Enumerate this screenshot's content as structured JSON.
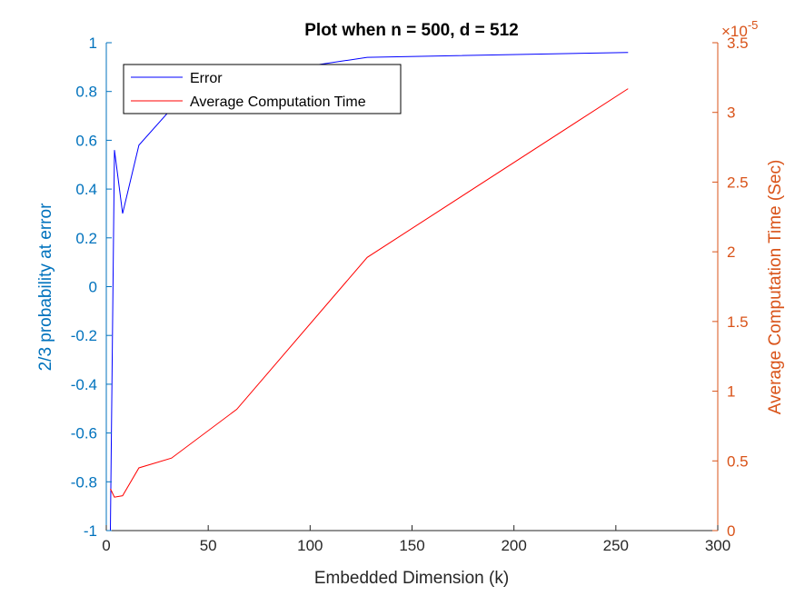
{
  "chart_data": {
    "type": "line",
    "title": "Plot when n = 500, d = 512",
    "xlabel": "Embedded Dimension (k)",
    "ylabel_left": "2/3 probability at error",
    "ylabel_right": "Average Computation Time (Sec)",
    "right_exponent_base": "×10",
    "right_exponent_power": "-5",
    "xlim": [
      0,
      300
    ],
    "ylim_left": [
      -1,
      1
    ],
    "ylim_right": [
      0,
      3.5
    ],
    "x_ticks": [
      "0",
      "50",
      "100",
      "150",
      "200",
      "250",
      "300"
    ],
    "y_left_ticks": [
      "-1",
      "-0.8",
      "-0.6",
      "-0.4",
      "-0.2",
      "0",
      "0.2",
      "0.4",
      "0.6",
      "0.8",
      "1"
    ],
    "y_right_ticks": [
      "0",
      "0.5",
      "1",
      "1.5",
      "2",
      "2.5",
      "3",
      "3.5"
    ],
    "legend_position": "top-left",
    "grid": false,
    "series": [
      {
        "name": "Error",
        "axis": "left",
        "color": "#0000FF",
        "x": [
          2,
          4,
          8,
          16,
          32,
          64,
          128,
          256
        ],
        "y": [
          -1.0,
          0.56,
          0.3,
          0.58,
          0.73,
          0.86,
          0.94,
          0.96
        ]
      },
      {
        "name": "Average Computation Time",
        "axis": "right",
        "color": "#FF0000",
        "x": [
          2,
          4,
          8,
          16,
          32,
          64,
          128,
          256
        ],
        "y": [
          0.3,
          0.24,
          0.25,
          0.45,
          0.52,
          0.87,
          1.96,
          3.17
        ]
      }
    ]
  }
}
